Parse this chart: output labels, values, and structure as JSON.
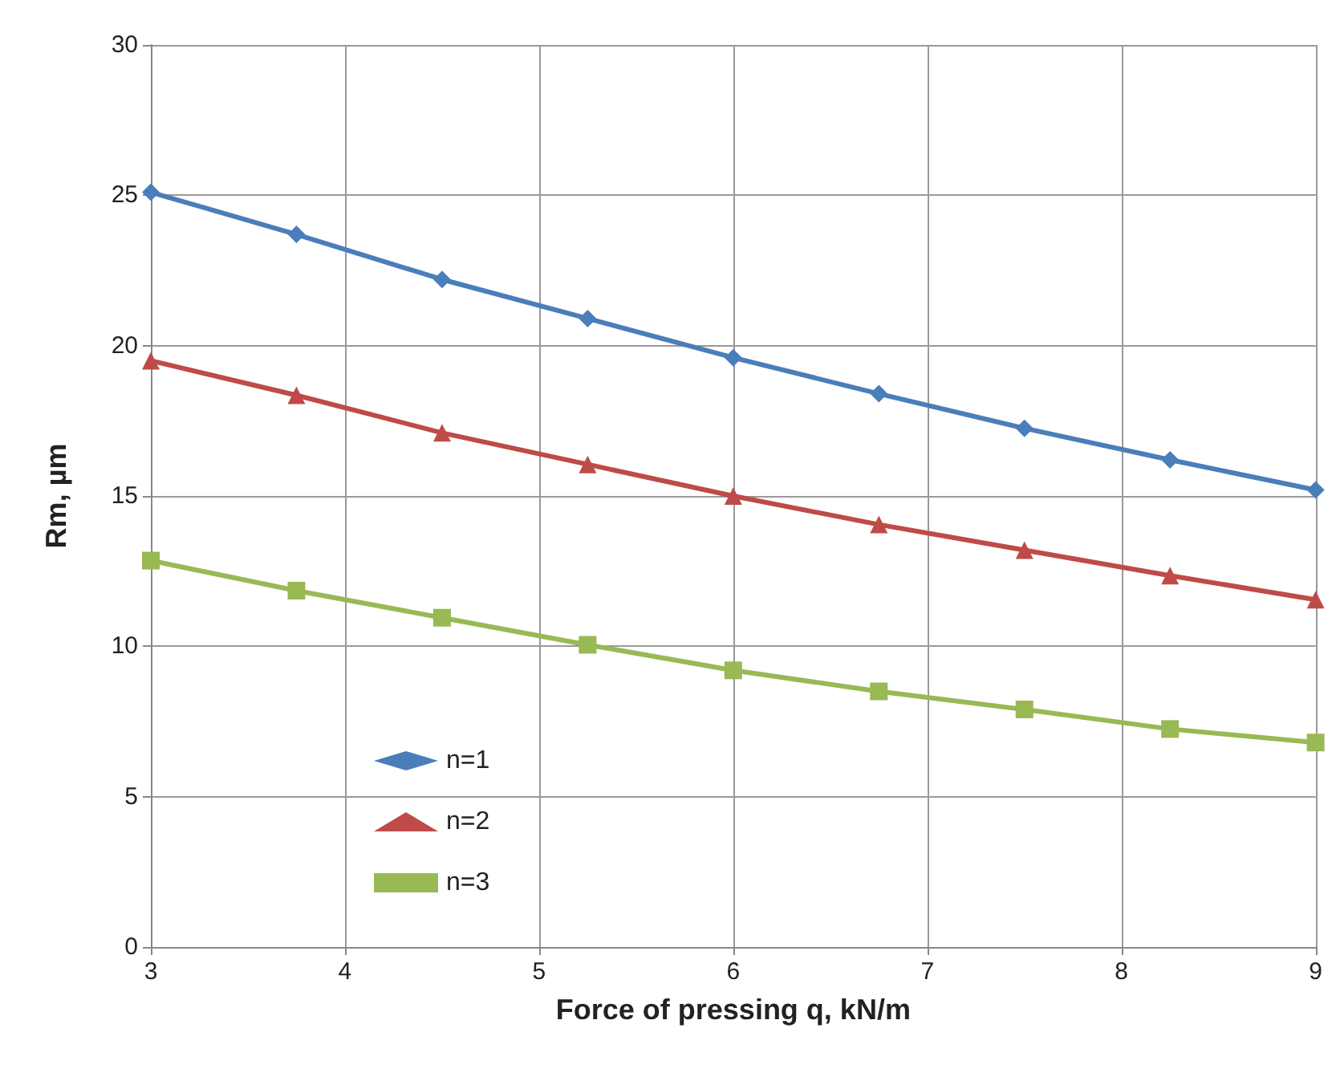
{
  "chart_data": {
    "type": "line",
    "xlabel": "Force of pressing q, kN/m",
    "ylabel": "Rm, µm",
    "x": [
      3,
      3.75,
      4.5,
      5.25,
      6,
      6.75,
      7.5,
      8.25,
      9
    ],
    "series": [
      {
        "name": "n=1",
        "color": "#4a7ebb",
        "marker": "diamond",
        "values": [
          25.1,
          23.7,
          22.2,
          20.9,
          19.6,
          18.4,
          17.25,
          16.2,
          15.2
        ]
      },
      {
        "name": "n=2",
        "color": "#be4b48",
        "marker": "triangle",
        "values": [
          19.5,
          18.35,
          17.1,
          16.05,
          15.0,
          14.05,
          13.2,
          12.35,
          11.55
        ]
      },
      {
        "name": "n=3",
        "color": "#98b954",
        "marker": "square",
        "values": [
          12.85,
          11.85,
          10.95,
          10.05,
          9.2,
          8.5,
          7.9,
          7.25,
          6.8
        ]
      }
    ],
    "xlim": [
      3,
      9
    ],
    "xticks": [
      3,
      4,
      5,
      6,
      7,
      8,
      9
    ],
    "ylim": [
      0,
      30
    ],
    "yticks": [
      0,
      5,
      10,
      15,
      20,
      25,
      30
    ],
    "grid": true,
    "legend": "bottom left",
    "line_style": "solid"
  }
}
